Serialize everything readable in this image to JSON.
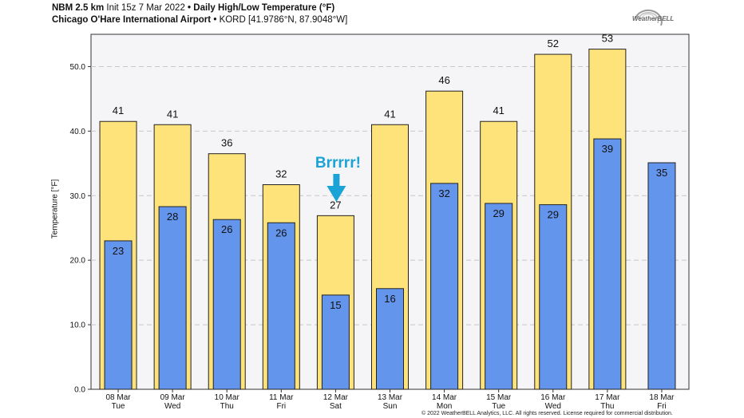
{
  "header": {
    "model": "NBM 2.5 km",
    "init": "Init 15z 7 Mar 2022",
    "bullet": "•",
    "product": "Daily High/Low Temperature (°F)",
    "location": "Chicago O'Hare International Airport",
    "station": "KORD [41.9786°N, 87.9048°W]"
  },
  "logo": {
    "text": "WeatherBELL"
  },
  "annotation": {
    "text": "Brrrrr!",
    "color": "#1aa3d6"
  },
  "footer": {
    "copyright": "© 2022 WeatherBELL Analytics, LLC. All rights reserved. License required for commercial distribution."
  },
  "colors": {
    "high": "#fde37a",
    "low": "#6495ed",
    "plot_bg": "#f5f5f7"
  },
  "chart_data": {
    "type": "bar",
    "ylabel": "Temperature [°F]",
    "ylim": [
      0,
      55
    ],
    "yticks": [
      "0.0",
      "10.0",
      "20.0",
      "30.0",
      "40.0",
      "50.0"
    ],
    "grid": true,
    "categories": [
      [
        "08 Mar",
        "Tue"
      ],
      [
        "09 Mar",
        "Wed"
      ],
      [
        "10 Mar",
        "Thu"
      ],
      [
        "11 Mar",
        "Fri"
      ],
      [
        "12 Mar",
        "Sat"
      ],
      [
        "13 Mar",
        "Sun"
      ],
      [
        "14 Mar",
        "Mon"
      ],
      [
        "15 Mar",
        "Tue"
      ],
      [
        "16 Mar",
        "Wed"
      ],
      [
        "17 Mar",
        "Thu"
      ],
      [
        "18 Mar",
        "Fri"
      ]
    ],
    "series": [
      {
        "key": "high",
        "values": [
          41,
          41,
          36,
          32,
          27,
          41,
          46,
          41,
          52,
          53,
          null
        ],
        "plotted": [
          41.5,
          41.0,
          36.5,
          31.7,
          26.9,
          41.0,
          46.2,
          41.5,
          51.9,
          52.7,
          null
        ]
      },
      {
        "key": "low",
        "values": [
          23,
          28,
          26,
          26,
          15,
          16,
          32,
          29,
          29,
          39,
          35
        ],
        "plotted": [
          23.0,
          28.3,
          26.3,
          25.8,
          14.6,
          15.6,
          31.9,
          28.8,
          28.6,
          38.8,
          35.1
        ]
      }
    ]
  }
}
